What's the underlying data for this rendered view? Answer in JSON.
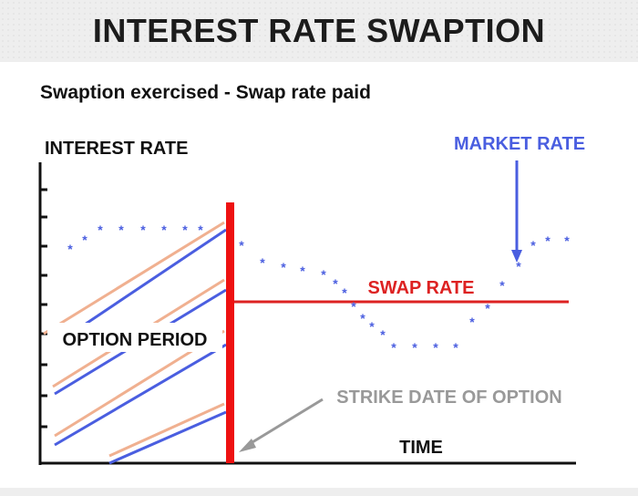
{
  "header": {
    "title": "INTEREST RATE SWAPTION"
  },
  "subtitle": "Swaption exercised - Swap rate paid",
  "diagram": {
    "y_axis_label": "INTEREST RATE",
    "x_axis_label": "TIME",
    "option_period_label": "OPTION PERIOD",
    "swap_rate_label": "SWAP RATE",
    "market_rate_label": "MARKET RATE",
    "strike_date_label": "STRIKE DATE OF OPTION",
    "colors": {
      "axis": "#111111",
      "strike_bar": "#ee1111",
      "swap_rate_line": "#dd2222",
      "market_rate": "#4a5ee0",
      "hatch_blue": "#4a5ee0",
      "hatch_peach": "#f0b090",
      "strike_label": "#999999"
    }
  }
}
